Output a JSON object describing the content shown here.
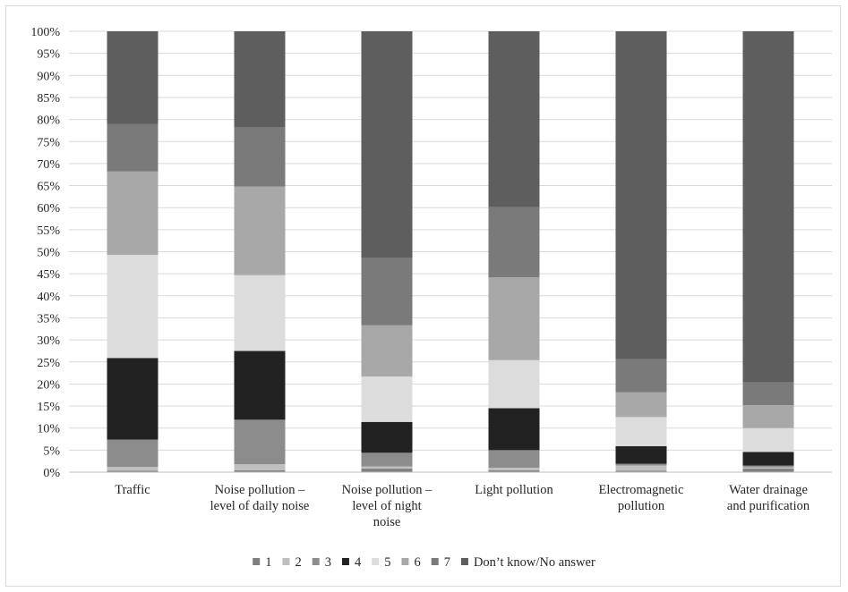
{
  "chart_data": {
    "type": "bar",
    "stacked": true,
    "percent_stacked": true,
    "categories": [
      [
        "Traffic"
      ],
      [
        "Noise pollution –",
        "level of daily noise"
      ],
      [
        "Noise pollution –",
        "level of night",
        "noise"
      ],
      [
        "Light pollution"
      ],
      [
        "Electromagnetic",
        "pollution"
      ],
      [
        "Water drainage",
        "and purification"
      ]
    ],
    "y_ticks": [
      "0%",
      "5%",
      "10%",
      "15%",
      "20%",
      "25%",
      "30%",
      "35%",
      "40%",
      "45%",
      "50%",
      "55%",
      "60%",
      "65%",
      "70%",
      "75%",
      "80%",
      "85%",
      "90%",
      "95%",
      "100%"
    ],
    "ylim": [
      0,
      100
    ],
    "grid": true,
    "legend": "bottom",
    "series": [
      {
        "name": "1",
        "color": "#7f7f7f",
        "values": [
          0.3,
          0.4,
          0.8,
          0.4,
          0.3,
          0.8
        ]
      },
      {
        "name": "2",
        "color": "#bfbfbf",
        "values": [
          0.9,
          1.4,
          0.5,
          0.6,
          1.2,
          0.3
        ]
      },
      {
        "name": "3",
        "color": "#8c8c8c",
        "values": [
          6.2,
          10.1,
          3.1,
          4.0,
          0.4,
          0.4
        ]
      },
      {
        "name": "4",
        "color": "#222222",
        "values": [
          18.5,
          15.6,
          7.0,
          9.5,
          4.0,
          3.1
        ]
      },
      {
        "name": "5",
        "color": "#dcdcdc",
        "values": [
          23.4,
          17.2,
          10.3,
          10.9,
          6.6,
          5.4
        ]
      },
      {
        "name": "6",
        "color": "#a8a8a8",
        "values": [
          18.9,
          20.1,
          11.6,
          18.8,
          5.6,
          5.2
        ]
      },
      {
        "name": "7",
        "color": "#7a7a7a",
        "values": [
          10.8,
          13.5,
          15.3,
          15.9,
          7.5,
          5.2
        ]
      },
      {
        "name": "Don’t know/No answer",
        "color": "#5e5e5e",
        "values": [
          21.0,
          21.7,
          51.4,
          39.9,
          74.4,
          79.6
        ]
      }
    ]
  }
}
